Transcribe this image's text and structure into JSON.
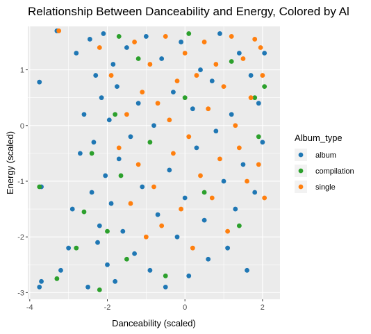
{
  "chart_data": {
    "type": "scatter",
    "title": "Relationship Between Danceability and Energy, Colored by Al",
    "xlabel": "Danceability (scaled)",
    "ylabel": "Energy (scaled)",
    "xlim": [
      -4.05,
      2.45
    ],
    "ylim": [
      -3.12,
      1.78
    ],
    "x_ticks": [
      -4,
      -2,
      0,
      2
    ],
    "y_ticks": [
      -3,
      -2,
      -1,
      0,
      1
    ],
    "grid": true,
    "legend_title": "Album_type",
    "legend_position": "right",
    "series": [
      {
        "name": "album",
        "color": "#1f77b4",
        "points": [
          [
            -3.75,
            0.78
          ],
          [
            -3.7,
            -1.1
          ],
          [
            -3.75,
            -2.9
          ],
          [
            -3.7,
            -2.8
          ],
          [
            -3.3,
            1.7
          ],
          [
            -3.2,
            -2.6
          ],
          [
            -3.0,
            -2.2
          ],
          [
            -2.9,
            -1.5
          ],
          [
            -2.8,
            1.3
          ],
          [
            -2.7,
            -0.5
          ],
          [
            -2.6,
            0.2
          ],
          [
            -2.5,
            -2.9
          ],
          [
            -2.45,
            1.55
          ],
          [
            -2.4,
            -1.2
          ],
          [
            -2.35,
            -0.3
          ],
          [
            -2.3,
            0.9
          ],
          [
            -2.25,
            -2.1
          ],
          [
            -2.2,
            -1.8
          ],
          [
            -2.15,
            0.5
          ],
          [
            -2.1,
            1.65
          ],
          [
            -2.05,
            -0.9
          ],
          [
            -2.0,
            -2.5
          ],
          [
            -1.95,
            0.1
          ],
          [
            -1.9,
            -1.4
          ],
          [
            -1.85,
            1.1
          ],
          [
            -1.8,
            -2.8
          ],
          [
            -1.75,
            0.7
          ],
          [
            -1.7,
            -0.6
          ],
          [
            -1.6,
            -1.9
          ],
          [
            -1.5,
            1.4
          ],
          [
            -1.4,
            -0.2
          ],
          [
            -1.3,
            -2.3
          ],
          [
            -1.2,
            0.4
          ],
          [
            -1.1,
            -1.1
          ],
          [
            -1.0,
            1.6
          ],
          [
            -0.9,
            -2.6
          ],
          [
            -0.8,
            0.0
          ],
          [
            -0.7,
            -1.6
          ],
          [
            -0.6,
            1.2
          ],
          [
            -0.5,
            -2.9
          ],
          [
            -0.4,
            -0.8
          ],
          [
            -0.3,
            0.6
          ],
          [
            -0.2,
            -2.0
          ],
          [
            -0.1,
            1.5
          ],
          [
            0.0,
            -1.3
          ],
          [
            0.1,
            -2.7
          ],
          [
            0.2,
            0.3
          ],
          [
            0.3,
            -0.4
          ],
          [
            0.4,
            1.0
          ],
          [
            0.5,
            -1.7
          ],
          [
            0.6,
            -2.4
          ],
          [
            0.7,
            0.8
          ],
          [
            0.8,
            -0.1
          ],
          [
            0.9,
            1.65
          ],
          [
            1.0,
            -1.0
          ],
          [
            1.1,
            -2.2
          ],
          [
            1.2,
            0.2
          ],
          [
            1.3,
            -1.5
          ],
          [
            1.4,
            1.3
          ],
          [
            1.5,
            -0.7
          ],
          [
            1.6,
            -2.6
          ],
          [
            1.7,
            0.9
          ],
          [
            1.8,
            -1.2
          ],
          [
            1.9,
            0.4
          ],
          [
            2.0,
            -0.3
          ],
          [
            2.05,
            1.3
          ]
        ]
      },
      {
        "name": "compilation",
        "color": "#2ca02c",
        "points": [
          [
            -3.75,
            -1.1
          ],
          [
            -3.3,
            -2.75
          ],
          [
            -2.8,
            -2.2
          ],
          [
            -2.6,
            -1.55
          ],
          [
            -2.4,
            -0.5
          ],
          [
            -2.2,
            -2.95
          ],
          [
            -2.0,
            -1.9
          ],
          [
            -1.8,
            0.2
          ],
          [
            -1.7,
            1.6
          ],
          [
            -1.65,
            -0.9
          ],
          [
            -1.5,
            -2.4
          ],
          [
            -1.2,
            1.2
          ],
          [
            -0.9,
            -0.3
          ],
          [
            -0.5,
            -2.7
          ],
          [
            0.0,
            0.5
          ],
          [
            0.1,
            1.65
          ],
          [
            0.5,
            -1.2
          ],
          [
            1.2,
            1.15
          ],
          [
            1.4,
            -1.8
          ],
          [
            1.8,
            0.5
          ],
          [
            2.05,
            0.7
          ],
          [
            1.9,
            -0.2
          ]
        ]
      },
      {
        "name": "single",
        "color": "#ff7f0e",
        "points": [
          [
            -3.25,
            1.7
          ],
          [
            -2.2,
            1.4
          ],
          [
            -1.9,
            0.9
          ],
          [
            -1.7,
            -0.4
          ],
          [
            -1.5,
            0.2
          ],
          [
            -1.4,
            -1.4
          ],
          [
            -1.3,
            1.5
          ],
          [
            -1.2,
            -0.7
          ],
          [
            -1.1,
            0.6
          ],
          [
            -1.0,
            -2.0
          ],
          [
            -0.9,
            1.1
          ],
          [
            -0.8,
            -1.1
          ],
          [
            -0.7,
            0.4
          ],
          [
            -0.6,
            -1.8
          ],
          [
            -0.5,
            1.6
          ],
          [
            -0.4,
            0.1
          ],
          [
            -0.3,
            -0.5
          ],
          [
            -0.2,
            0.8
          ],
          [
            -0.1,
            -1.5
          ],
          [
            0.0,
            1.3
          ],
          [
            0.1,
            -0.2
          ],
          [
            0.2,
            -2.2
          ],
          [
            0.3,
            0.9
          ],
          [
            0.4,
            -0.9
          ],
          [
            0.5,
            1.5
          ],
          [
            0.6,
            0.3
          ],
          [
            0.7,
            -1.3
          ],
          [
            0.8,
            1.1
          ],
          [
            0.9,
            -0.6
          ],
          [
            1.0,
            0.7
          ],
          [
            1.1,
            -1.9
          ],
          [
            1.2,
            1.6
          ],
          [
            1.3,
            0.0
          ],
          [
            1.4,
            -0.4
          ],
          [
            1.5,
            1.2
          ],
          [
            1.6,
            -1.0
          ],
          [
            1.7,
            0.5
          ],
          [
            1.8,
            1.55
          ],
          [
            1.9,
            -0.7
          ],
          [
            2.0,
            0.9
          ],
          [
            2.05,
            -1.3
          ],
          [
            1.95,
            1.4
          ]
        ]
      }
    ]
  }
}
